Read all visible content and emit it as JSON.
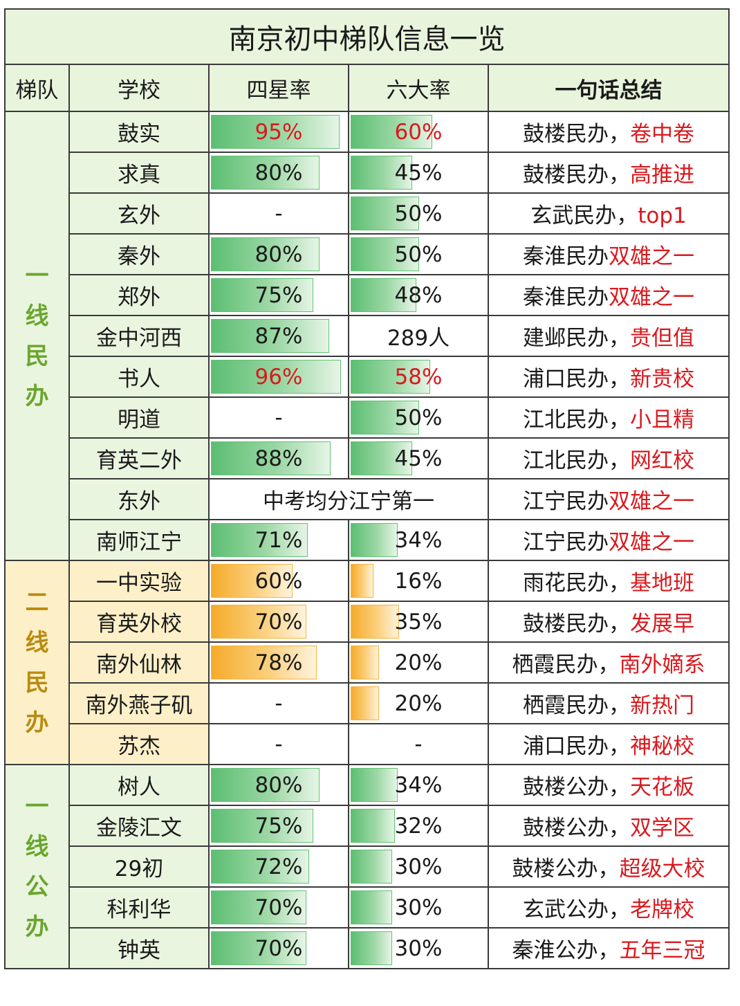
{
  "title": "南京初中梯队信息一览",
  "headers": {
    "tier": "梯队",
    "school": "学校",
    "four_star": "四星率",
    "six_big": "六大率",
    "summary": "一句话总结"
  },
  "colors": {
    "green_header_bg": "#e8f4dc",
    "green_tier_bg": "#eaf5e0",
    "green_tier_text": "#6aa62d",
    "yellow_tier_bg": "#fdf0c8",
    "yellow_tier_text": "#b98b10",
    "green_bar": "#5cbe72",
    "orange_bar": "#f5ab2a",
    "highlight_red": "#d9191e"
  },
  "groups": [
    {
      "tier": "一线民办",
      "bar_color": "green",
      "rows": [
        {
          "school": "鼓实",
          "four_star": "95%",
          "four_fill": 95,
          "four_red": true,
          "six_big": "60%",
          "six_fill": 60,
          "six_red": true,
          "summary_prefix": "鼓楼民办，",
          "summary_highlight": "卷中卷"
        },
        {
          "school": "求真",
          "four_star": "80%",
          "four_fill": 80,
          "six_big": "45%",
          "six_fill": 45,
          "summary_prefix": "鼓楼民办，",
          "summary_highlight": "高推进"
        },
        {
          "school": "玄外",
          "four_star": "-",
          "six_big": "50%",
          "six_fill": 50,
          "summary_prefix": "玄武民办，",
          "summary_highlight": "top1"
        },
        {
          "school": "秦外",
          "four_star": "80%",
          "four_fill": 80,
          "six_big": "50%",
          "six_fill": 50,
          "summary_prefix": "秦淮民办",
          "summary_highlight": "双雄之一"
        },
        {
          "school": "郑外",
          "four_star": "75%",
          "four_fill": 75,
          "six_big": "48%",
          "six_fill": 48,
          "summary_prefix": "秦淮民办",
          "summary_highlight": "双雄之一"
        },
        {
          "school": "金中河西",
          "four_star": "87%",
          "four_fill": 87,
          "six_big": "289人",
          "summary_prefix": "建邺民办，",
          "summary_highlight": "贵但值"
        },
        {
          "school": "书人",
          "four_star": "96%",
          "four_fill": 96,
          "four_red": true,
          "six_big": "58%",
          "six_fill": 58,
          "six_red": true,
          "summary_prefix": "浦口民办，",
          "summary_highlight": "新贵校"
        },
        {
          "school": "明道",
          "four_star": "-",
          "six_big": "50%",
          "six_fill": 50,
          "summary_prefix": "江北民办，",
          "summary_highlight": "小且精"
        },
        {
          "school": "育英二外",
          "four_star": "88%",
          "four_fill": 88,
          "six_big": "45%",
          "six_fill": 45,
          "summary_prefix": "江北民办，",
          "summary_highlight": "网红校"
        },
        {
          "school": "东外",
          "merged": "中考均分江宁第一",
          "summary_prefix": "江宁民办",
          "summary_highlight": "双雄之一"
        },
        {
          "school": "南师江宁",
          "four_star": "71%",
          "four_fill": 71,
          "six_big": "34%",
          "six_fill": 34,
          "summary_prefix": "江宁民办",
          "summary_highlight": "双雄之一"
        }
      ]
    },
    {
      "tier": "二线民办",
      "bar_color": "orange",
      "rows": [
        {
          "school": "一中实验",
          "four_star": "60%",
          "four_fill": 60,
          "six_big": "16%",
          "six_fill": 16,
          "summary_prefix": "雨花民办，",
          "summary_highlight": "基地班"
        },
        {
          "school": "育英外校",
          "four_star": "70%",
          "four_fill": 70,
          "six_big": "35%",
          "six_fill": 35,
          "summary_prefix": "鼓楼民办，",
          "summary_highlight": "发展早"
        },
        {
          "school": "南外仙林",
          "four_star": "78%",
          "four_fill": 78,
          "six_big": "20%",
          "six_fill": 20,
          "summary_prefix": "栖霞民办，",
          "summary_highlight": "南外嫡系"
        },
        {
          "school": "南外燕子矶",
          "four_star": "-",
          "six_big": "20%",
          "six_fill": 20,
          "summary_prefix": "栖霞民办，",
          "summary_highlight": "新热门"
        },
        {
          "school": "苏杰",
          "four_star": "-",
          "six_big": "-",
          "summary_prefix": "浦口民办，",
          "summary_highlight": "神秘校"
        }
      ]
    },
    {
      "tier": "一线公办",
      "bar_color": "green",
      "rows": [
        {
          "school": "树人",
          "four_star": "80%",
          "four_fill": 80,
          "six_big": "34%",
          "six_fill": 34,
          "summary_prefix": "鼓楼公办，",
          "summary_highlight": "天花板"
        },
        {
          "school": "金陵汇文",
          "four_star": "75%",
          "four_fill": 75,
          "six_big": "32%",
          "six_fill": 32,
          "summary_prefix": "鼓楼公办，",
          "summary_highlight": "双学区"
        },
        {
          "school": "29初",
          "four_star": "72%",
          "four_fill": 72,
          "six_big": "30%",
          "six_fill": 30,
          "summary_prefix": "鼓楼公办，",
          "summary_highlight": "超级大校"
        },
        {
          "school": "科利华",
          "four_star": "70%",
          "four_fill": 70,
          "six_big": "30%",
          "six_fill": 30,
          "summary_prefix": "玄武公办，",
          "summary_highlight": "老牌校"
        },
        {
          "school": "钟英",
          "four_star": "70%",
          "four_fill": 70,
          "six_big": "30%",
          "six_fill": 30,
          "summary_prefix": "秦淮公办，",
          "summary_highlight": "五年三冠"
        }
      ]
    }
  ]
}
